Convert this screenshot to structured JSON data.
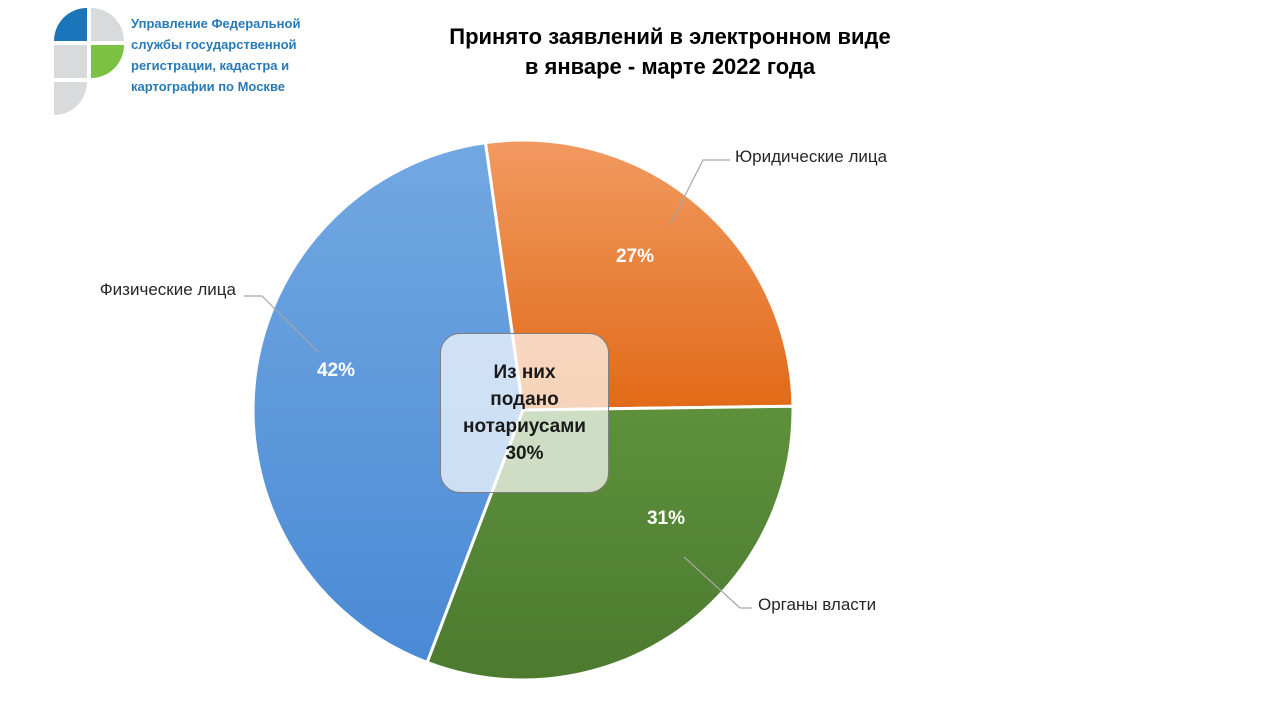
{
  "header": {
    "org_lines": [
      "Управление Федеральной",
      "службы государственной",
      "регистрации, кадастра и",
      "картографии по Москве"
    ],
    "logo_colors": {
      "blue": "#1b75bb",
      "green": "#7cc242",
      "gray": "#d9dadb"
    }
  },
  "chart_data": {
    "type": "pie",
    "title": "Принято заявлений в электронном виде в январе - марте 2022 года",
    "title_lines": [
      "Принято заявлений в электронном виде",
      "в январе - марте 2022 года"
    ],
    "slices": [
      {
        "name": "Юридические лица",
        "value": 27,
        "label": "27%",
        "color": "#ed7d31"
      },
      {
        "name": "Органы власти",
        "value": 31,
        "label": "31%",
        "color": "#548235"
      },
      {
        "name": "Физические лица",
        "value": 42,
        "label": "42%",
        "color": "#5b9bd5"
      }
    ],
    "start_angle_deg": -8,
    "direction": "clockwise",
    "annotation": {
      "lines": [
        "Из них",
        "подано",
        "нотариусами",
        "30%"
      ]
    }
  }
}
